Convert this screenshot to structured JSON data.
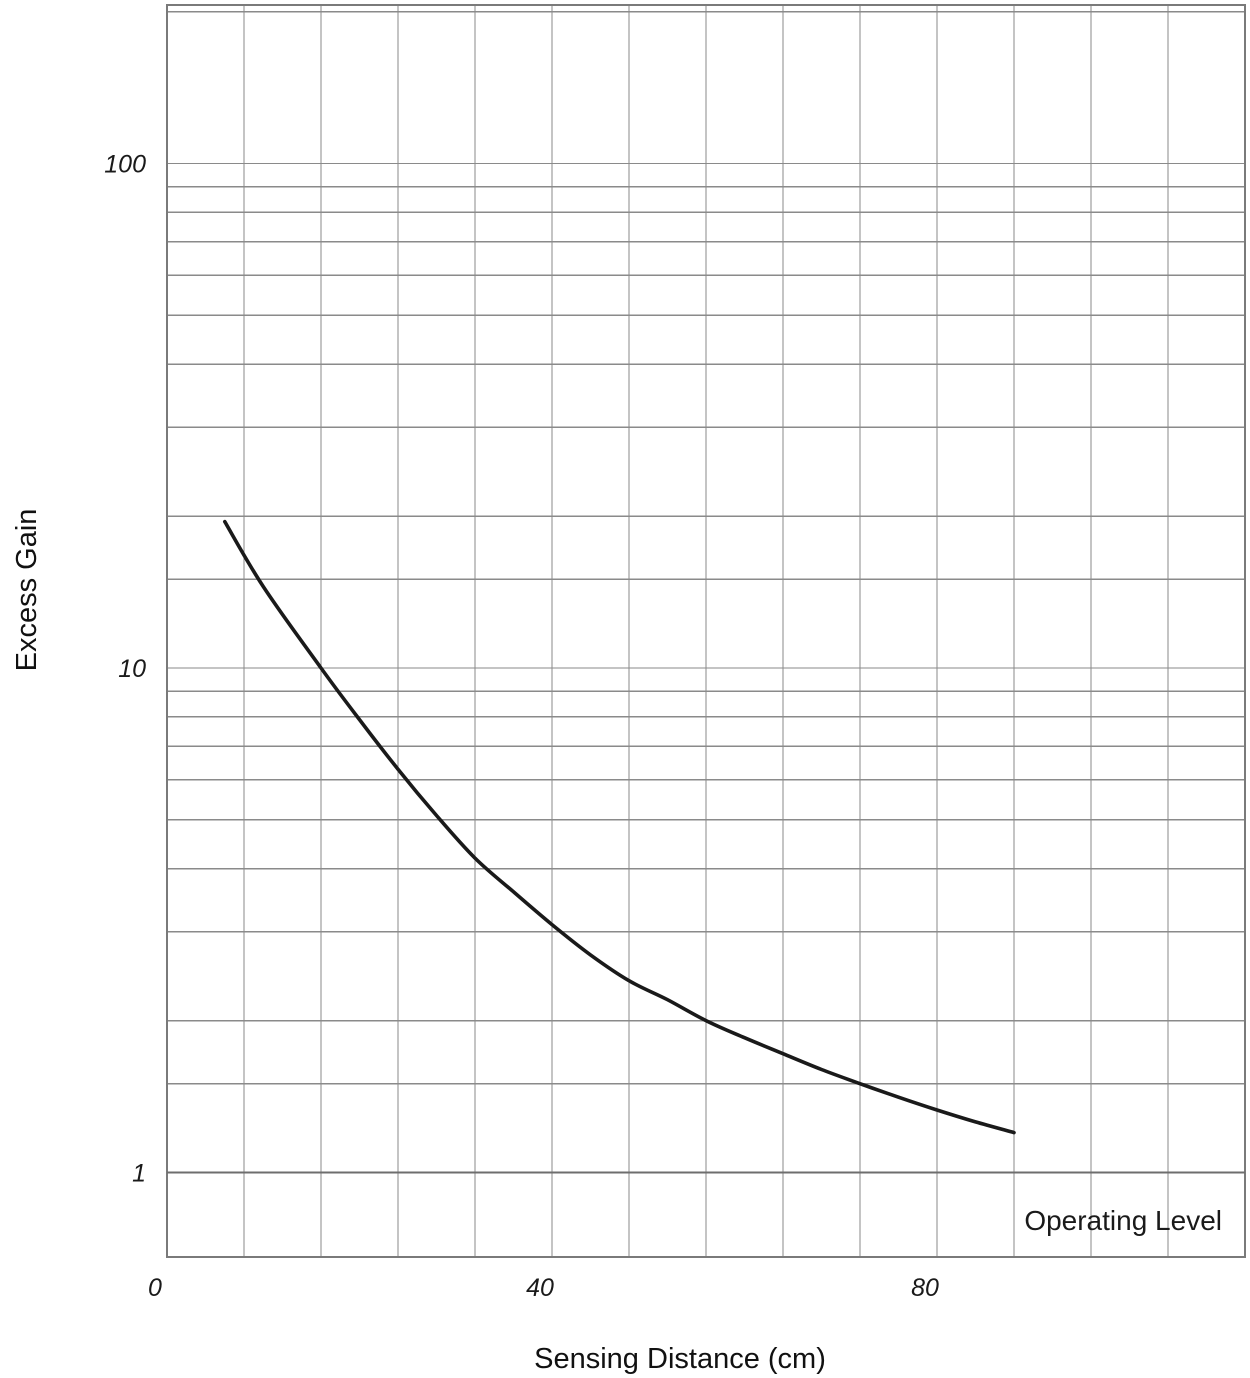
{
  "chart_data": {
    "type": "line",
    "title": "",
    "xlabel": "Sensing Distance (cm)",
    "ylabel": "Excess Gain",
    "xlim": [
      0,
      112
    ],
    "ylim": [
      0.85,
      200
    ],
    "yscale": "log",
    "grid": true,
    "x_ticks": [
      {
        "value": 0,
        "label": "0"
      },
      {
        "value": 40,
        "label": "40"
      },
      {
        "value": 80,
        "label": "80"
      }
    ],
    "y_ticks": [
      {
        "value": 1,
        "label": "1"
      },
      {
        "value": 10,
        "label": "10"
      },
      {
        "value": 100,
        "label": "100"
      }
    ],
    "x_gridlines": [
      0,
      8,
      16,
      24,
      32,
      40,
      48,
      56,
      64,
      72,
      80,
      88,
      96,
      104,
      112
    ],
    "y_gridlines": [
      1,
      1.5,
      2,
      3,
      4,
      5,
      6,
      7,
      8,
      9,
      10,
      15,
      20,
      30,
      40,
      50,
      60,
      70,
      80,
      90,
      100,
      200
    ],
    "reference_line": {
      "value": 1,
      "label": "Operating Level"
    },
    "series": [
      {
        "x": [
          6,
          10,
          16,
          20,
          24,
          28,
          32,
          36,
          40,
          44,
          48,
          52,
          56,
          60,
          64,
          68,
          72,
          76,
          80,
          84,
          88
        ],
        "y": [
          19.5,
          14.5,
          10.0,
          7.9,
          6.3,
          5.1,
          4.2,
          3.6,
          3.1,
          2.7,
          2.4,
          2.2,
          2.0,
          1.85,
          1.72,
          1.6,
          1.5,
          1.41,
          1.33,
          1.26,
          1.2
        ]
      }
    ]
  }
}
